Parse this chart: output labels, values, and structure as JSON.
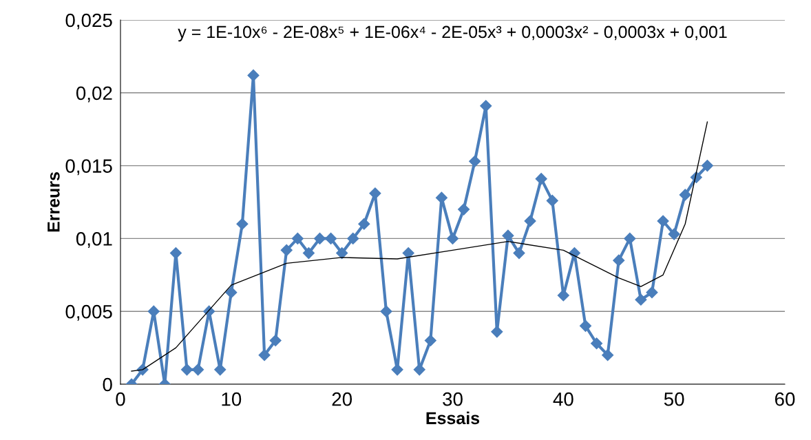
{
  "chart_data": {
    "type": "line",
    "xlabel": "Essais",
    "ylabel": "Erreurs",
    "xlim": [
      0,
      60
    ],
    "xticks": [
      0,
      10,
      20,
      30,
      40,
      50,
      60
    ],
    "ylim": [
      0,
      0.025
    ],
    "yticks": [
      0,
      {
        "value": 0.005,
        "label": "0,005"
      },
      {
        "value": 0.01,
        "label": "0,01"
      },
      {
        "value": 0.015,
        "label": "0,015"
      },
      {
        "value": 0.02,
        "label": "0,02"
      },
      {
        "value": 0.025,
        "label": "0,025"
      }
    ],
    "grid": "y",
    "legend": false,
    "annotations": [
      "y = 1E-10x⁶ - 2E-08x⁵ + 1E-06x⁴ - 2E-05x³ + 0,0003x² - 0,0003x + 0,001"
    ],
    "series": [
      {
        "color": "#4a7ebb",
        "marker": "diamond",
        "x": [
          1,
          2,
          3,
          4,
          5,
          6,
          7,
          8,
          9,
          10,
          11,
          12,
          13,
          14,
          15,
          16,
          17,
          18,
          19,
          20,
          21,
          22,
          23,
          24,
          25,
          26,
          27,
          28,
          29,
          30,
          31,
          32,
          33,
          34,
          35,
          36,
          37,
          38,
          39,
          40,
          41,
          42,
          43,
          44,
          45,
          46,
          47,
          48,
          49,
          50,
          51,
          52,
          53
        ],
        "values": [
          0,
          0.001,
          0.005,
          0,
          0.009,
          0.001,
          0.001,
          0.005,
          0.001,
          0.0063,
          0.011,
          0.0212,
          0.002,
          0.003,
          0.0092,
          0.01,
          0.009,
          0.01,
          0.01,
          0.009,
          0.01,
          0.011,
          0.0131,
          0.005,
          0.001,
          0.009,
          0.001,
          0.003,
          0.0128,
          0.01,
          0.012,
          0.0153,
          0.0191,
          0.0036,
          0.0102,
          0.009,
          0.0112,
          0.0141,
          0.0126,
          0.0061,
          0.009,
          0.004,
          0.0028,
          0.002,
          0.0085,
          0.01,
          0.0058,
          0.0063,
          0.0112,
          0.0103,
          0.013,
          0.0142,
          0.015
        ]
      },
      {
        "color": "#000000",
        "marker": "none",
        "x": [
          1,
          2,
          5,
          10,
          15,
          20,
          25,
          30,
          35,
          40,
          45,
          47,
          49,
          51,
          53
        ],
        "values": [
          0.0009,
          0.001,
          0.0025,
          0.0068,
          0.0083,
          0.0087,
          0.0086,
          0.0092,
          0.0098,
          0.0092,
          0.0073,
          0.0067,
          0.0075,
          0.011,
          0.018
        ]
      }
    ]
  }
}
